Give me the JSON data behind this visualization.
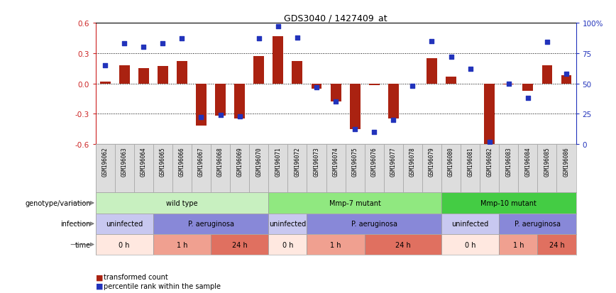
{
  "title": "GDS3040 / 1427409_at",
  "samples": [
    "GSM196062",
    "GSM196063",
    "GSM196064",
    "GSM196065",
    "GSM196066",
    "GSM196067",
    "GSM196068",
    "GSM196069",
    "GSM196070",
    "GSM196071",
    "GSM196072",
    "GSM196073",
    "GSM196074",
    "GSM196075",
    "GSM196076",
    "GSM196077",
    "GSM196078",
    "GSM196079",
    "GSM196080",
    "GSM196081",
    "GSM196082",
    "GSM196083",
    "GSM196084",
    "GSM196085",
    "GSM196086"
  ],
  "transformed_count": [
    0.02,
    0.18,
    0.15,
    0.17,
    0.22,
    -0.42,
    -0.32,
    -0.35,
    0.27,
    0.47,
    0.22,
    -0.05,
    -0.18,
    -0.45,
    -0.02,
    -0.35,
    0.0,
    0.25,
    0.07,
    0.0,
    -0.6,
    -0.01,
    -0.07,
    0.18,
    0.08
  ],
  "percentile_rank": [
    65,
    83,
    80,
    83,
    87,
    22,
    24,
    23,
    87,
    97,
    88,
    47,
    35,
    12,
    10,
    20,
    48,
    85,
    72,
    62,
    2,
    50,
    38,
    84,
    58
  ],
  "ylim_left": [
    -0.6,
    0.6
  ],
  "ylim_right": [
    0,
    100
  ],
  "yticks_left": [
    -0.6,
    -0.3,
    0.0,
    0.3,
    0.6
  ],
  "yticks_right": [
    0,
    25,
    50,
    75,
    100
  ],
  "bar_color": "#aa2211",
  "dot_color": "#2233bb",
  "bg_color": "#ffffff",
  "tick_bg": "#dddddd",
  "genotype_groups": [
    {
      "label": "wild type",
      "start": 0,
      "end": 8,
      "color": "#c8f0c0"
    },
    {
      "label": "Mmp-7 mutant",
      "start": 9,
      "end": 17,
      "color": "#90e880"
    },
    {
      "label": "Mmp-10 mutant",
      "start": 18,
      "end": 24,
      "color": "#44cc44"
    }
  ],
  "infection_groups": [
    {
      "label": "uninfected",
      "start": 0,
      "end": 2,
      "color": "#c8c8f0"
    },
    {
      "label": "P. aeruginosa",
      "start": 3,
      "end": 8,
      "color": "#8888d8"
    },
    {
      "label": "uninfected",
      "start": 9,
      "end": 10,
      "color": "#c8c8f0"
    },
    {
      "label": "P. aeruginosa",
      "start": 11,
      "end": 17,
      "color": "#8888d8"
    },
    {
      "label": "uninfected",
      "start": 18,
      "end": 20,
      "color": "#c8c8f0"
    },
    {
      "label": "P. aeruginosa",
      "start": 21,
      "end": 24,
      "color": "#8888d8"
    }
  ],
  "time_groups": [
    {
      "label": "0 h",
      "start": 0,
      "end": 2,
      "color": "#ffe8e0"
    },
    {
      "label": "1 h",
      "start": 3,
      "end": 5,
      "color": "#f0a090"
    },
    {
      "label": "24 h",
      "start": 6,
      "end": 8,
      "color": "#e07060"
    },
    {
      "label": "0 h",
      "start": 9,
      "end": 10,
      "color": "#ffe8e0"
    },
    {
      "label": "1 h",
      "start": 11,
      "end": 13,
      "color": "#f0a090"
    },
    {
      "label": "24 h",
      "start": 14,
      "end": 17,
      "color": "#e07060"
    },
    {
      "label": "0 h",
      "start": 18,
      "end": 20,
      "color": "#ffe8e0"
    },
    {
      "label": "1 h",
      "start": 21,
      "end": 22,
      "color": "#f0a090"
    },
    {
      "label": "24 h",
      "start": 23,
      "end": 24,
      "color": "#e07060"
    }
  ],
  "row_labels": [
    "genotype/variation",
    "infection",
    "time"
  ],
  "legend_items": [
    {
      "label": "transformed count",
      "color": "#aa2211"
    },
    {
      "label": "percentile rank within the sample",
      "color": "#2233bb"
    }
  ],
  "left_axis_color": "#cc2222",
  "right_axis_color": "#2233bb"
}
